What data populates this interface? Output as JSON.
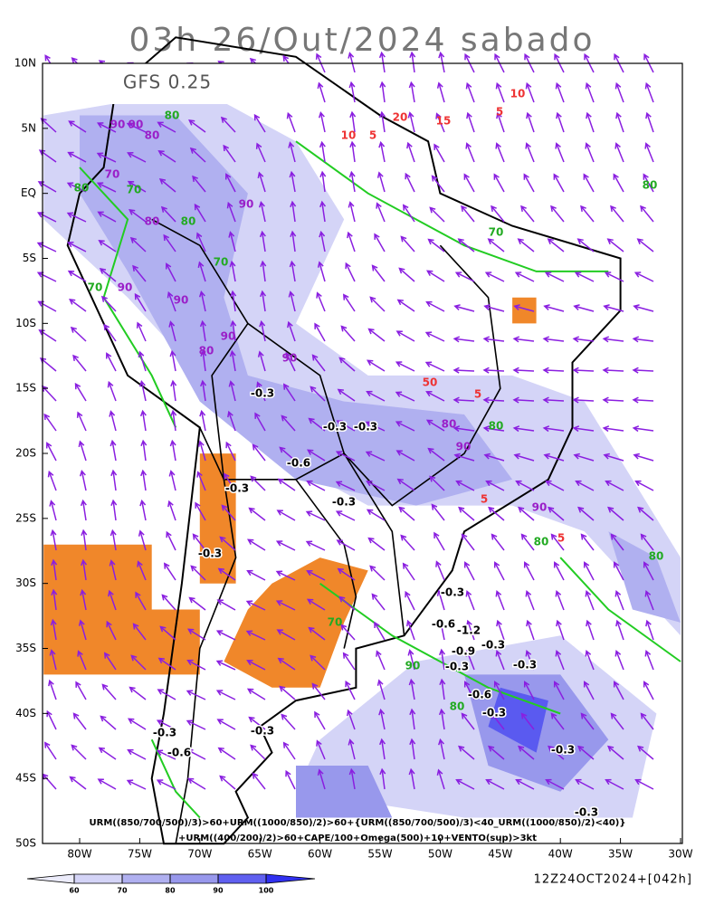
{
  "header": {
    "title": "03h 26/Out/2024 sabado",
    "model": "GFS 0.25"
  },
  "axes": {
    "lat_labels": [
      "10N",
      "5N",
      "EQ",
      "5S",
      "10S",
      "15S",
      "20S",
      "25S",
      "30S",
      "35S",
      "40S",
      "45S",
      "50S"
    ],
    "lon_labels": [
      "80W",
      "75W",
      "70W",
      "65W",
      "60W",
      "55W",
      "50W",
      "45W",
      "40W",
      "35W",
      "30W"
    ]
  },
  "legend": {
    "line1": "URM((850/700/500)/3)>60+URM((1000/850)/2)>60+{URM((850/700/500)/3)<40_URM((1000/850)/2)<40)}",
    "line2": "+URM((400/200)/2)>60+CAPE/100+Omega(500)+10+VENTO(sup)>3kt"
  },
  "colorbar": {
    "ticks": [
      60,
      70,
      80,
      90,
      100
    ]
  },
  "footer": {
    "run": "12Z24OCT2024+[042h]"
  },
  "contour_labels": [
    "-0.3",
    "-0.3",
    "-0.3",
    "-0.6",
    "-0.3",
    "-0.3",
    "-0.3",
    "-0.3",
    "-0.6",
    "-1.2",
    "-0.9",
    "-0.3",
    "-0.6",
    "-0.3",
    "-0.3",
    "-0.3",
    "-0.3",
    "-0.6",
    "-0.3",
    "-0.3",
    "-0.3",
    "90",
    "90",
    "80",
    "70",
    "90",
    "80",
    "90",
    "90",
    "80",
    "90",
    "90",
    "80",
    "90",
    "90",
    "10",
    "20",
    "15",
    "10",
    "5",
    "5",
    "50",
    "5",
    "5",
    "5",
    "80",
    "70",
    "80",
    "80",
    "70",
    "70",
    "80",
    "80",
    "70",
    "80",
    "70",
    "90",
    "80",
    "80"
  ]
}
